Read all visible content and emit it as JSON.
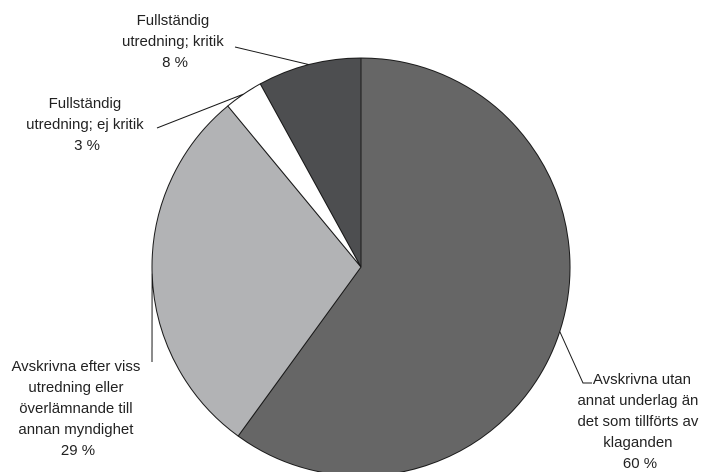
{
  "chart_data": {
    "type": "pie",
    "start": "top",
    "direction": "clockwise",
    "slices": [
      {
        "label_lines": [
          "Avskrivna utan",
          "annat underlag än",
          "det som tillförts av",
          "klaganden"
        ],
        "percent_label": "60 %",
        "value": 60,
        "color": "#666666"
      },
      {
        "label_lines": [
          "Avskrivna efter viss",
          "utredning eller",
          "överlämnande till",
          "annan myndighet"
        ],
        "percent_label": "29 %",
        "value": 29,
        "color": "#b2b3b5"
      },
      {
        "label_lines": [
          "Fullständig",
          "utredning; ej kritik"
        ],
        "percent_label": "3 %",
        "value": 3,
        "color": "#ffffff"
      },
      {
        "label_lines": [
          "Fullständig",
          "utredning; kritik"
        ],
        "percent_label": "8 %",
        "value": 8,
        "color": "#4d4e50"
      }
    ]
  }
}
